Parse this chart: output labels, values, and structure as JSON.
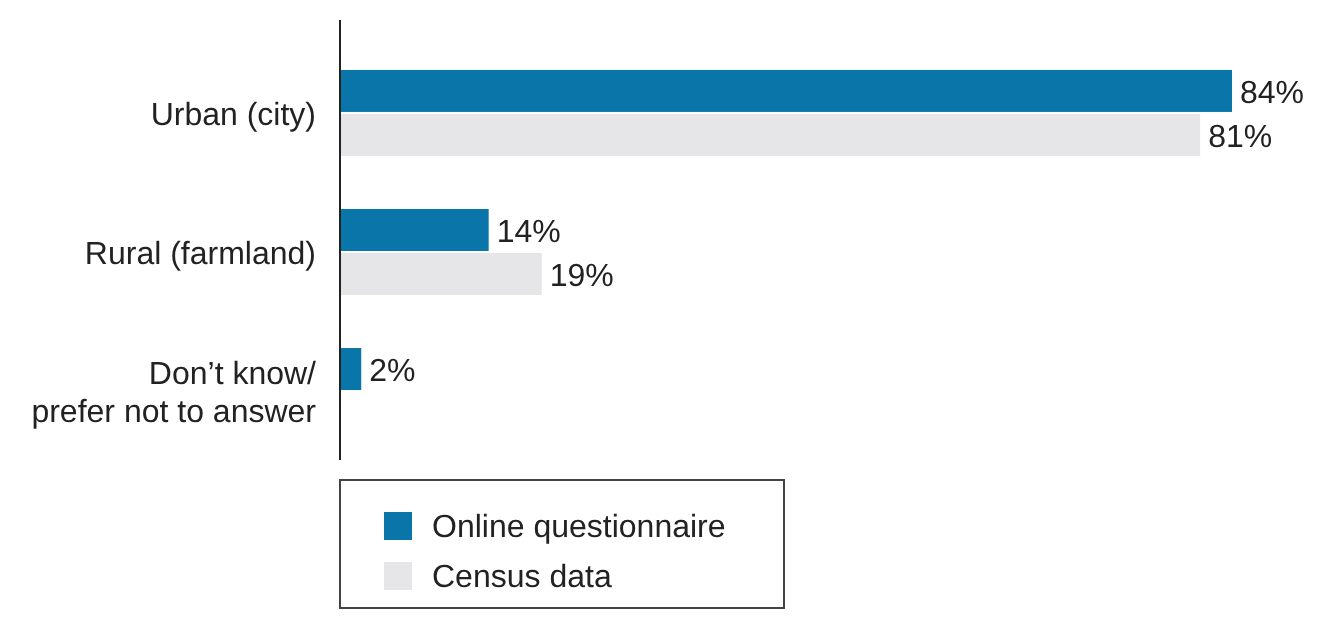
{
  "chart_data": {
    "type": "bar",
    "orientation": "horizontal",
    "categories": [
      "Urban (city)",
      "Rural (farmland)",
      "Don’t know/\nprefer not to answer"
    ],
    "series": [
      {
        "name": "Online questionnaire",
        "color": "#0a75a8",
        "values": [
          84,
          14,
          2
        ],
        "value_labels": [
          "84%",
          "14%",
          "2%"
        ]
      },
      {
        "name": "Census data",
        "color": "#e6e6e8",
        "values": [
          81,
          19,
          null
        ],
        "value_labels": [
          "81%",
          "19%",
          null
        ]
      }
    ],
    "legend": "bottom"
  }
}
